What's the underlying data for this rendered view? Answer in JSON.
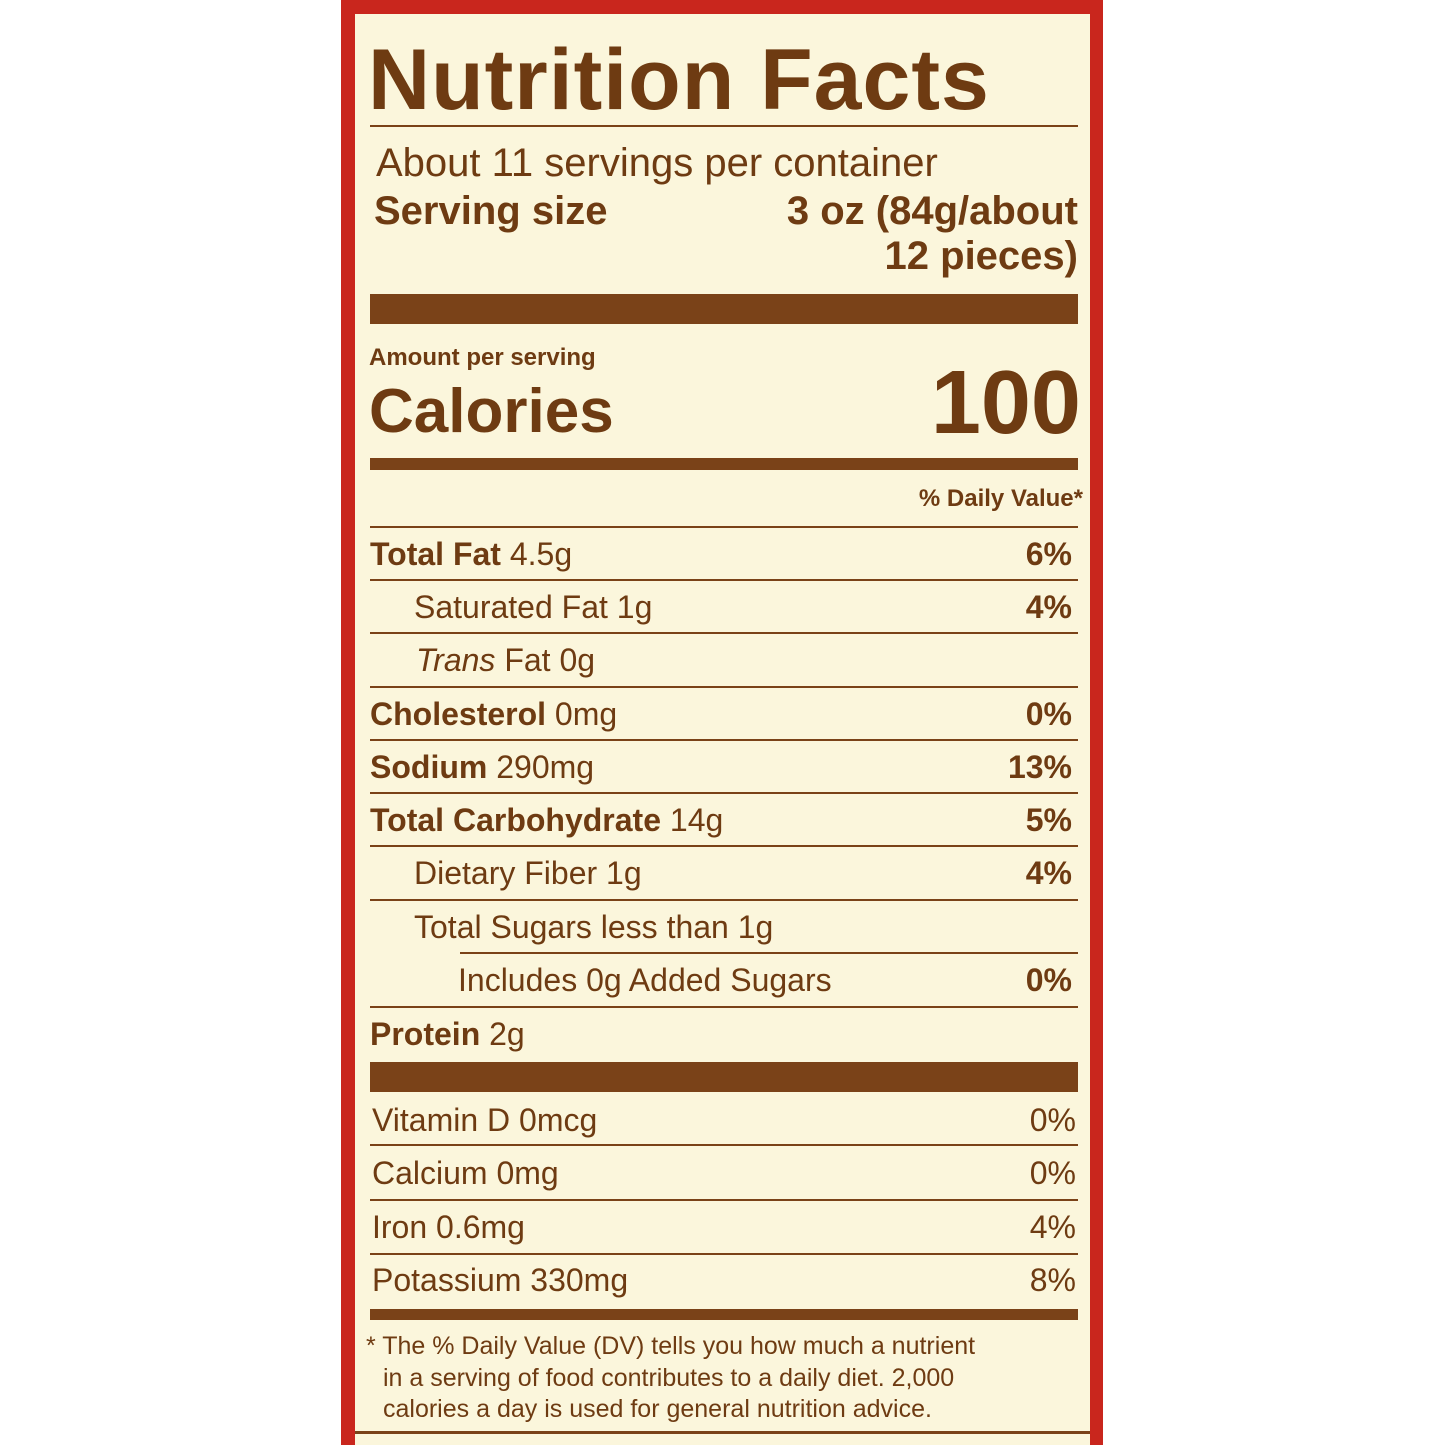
{
  "title": "Nutrition Facts",
  "servings_per_container": "About 11 servings per container",
  "serving_size_label": "Serving size",
  "serving_size_value_line1": "3 oz (84g/about",
  "serving_size_value_line2": "12 pieces)",
  "amount_per_serving": "Amount per serving",
  "calories_label": "Calories",
  "calories_value": "100",
  "daily_value_header": "% Daily Value*",
  "nutrients": [
    {
      "name": "Total Fat",
      "amount": "4.5g",
      "dv": "6%"
    },
    {
      "name": "Saturated Fat",
      "amount": "1g",
      "dv": "4%"
    },
    {
      "name_italic": "Trans",
      "name": "Fat",
      "amount": "0g",
      "dv": ""
    },
    {
      "name": "Cholesterol",
      "amount": "0mg",
      "dv": "0%"
    },
    {
      "name": "Sodium",
      "amount": "290mg",
      "dv": "13%"
    },
    {
      "name": "Total Carbohydrate",
      "amount": "14g",
      "dv": "5%"
    },
    {
      "name": "Dietary Fiber",
      "amount": "1g",
      "dv": "4%"
    },
    {
      "name": "Total Sugars less than",
      "amount": "1g",
      "dv": ""
    },
    {
      "name": "Includes 0g Added Sugars",
      "amount": "",
      "dv": "0%"
    },
    {
      "name": "Protein",
      "amount": "2g",
      "dv": ""
    }
  ],
  "vitamins": [
    {
      "text": "Vitamin D 0mcg",
      "dv": "0%"
    },
    {
      "text": "Calcium 0mg",
      "dv": "0%"
    },
    {
      "text": "Iron 0.6mg",
      "dv": "4%"
    },
    {
      "text": "Potassium 330mg",
      "dv": "8%"
    }
  ],
  "footnote": [
    "* The % Daily Value (DV) tells you how much a nutrient",
    "in a serving of food contributes to a daily diet. 2,000",
    "calories a day is used for general nutrition advice."
  ],
  "colors": {
    "text": "#6e3b12",
    "background": "#fbf6dc",
    "border": "#c9261d"
  }
}
